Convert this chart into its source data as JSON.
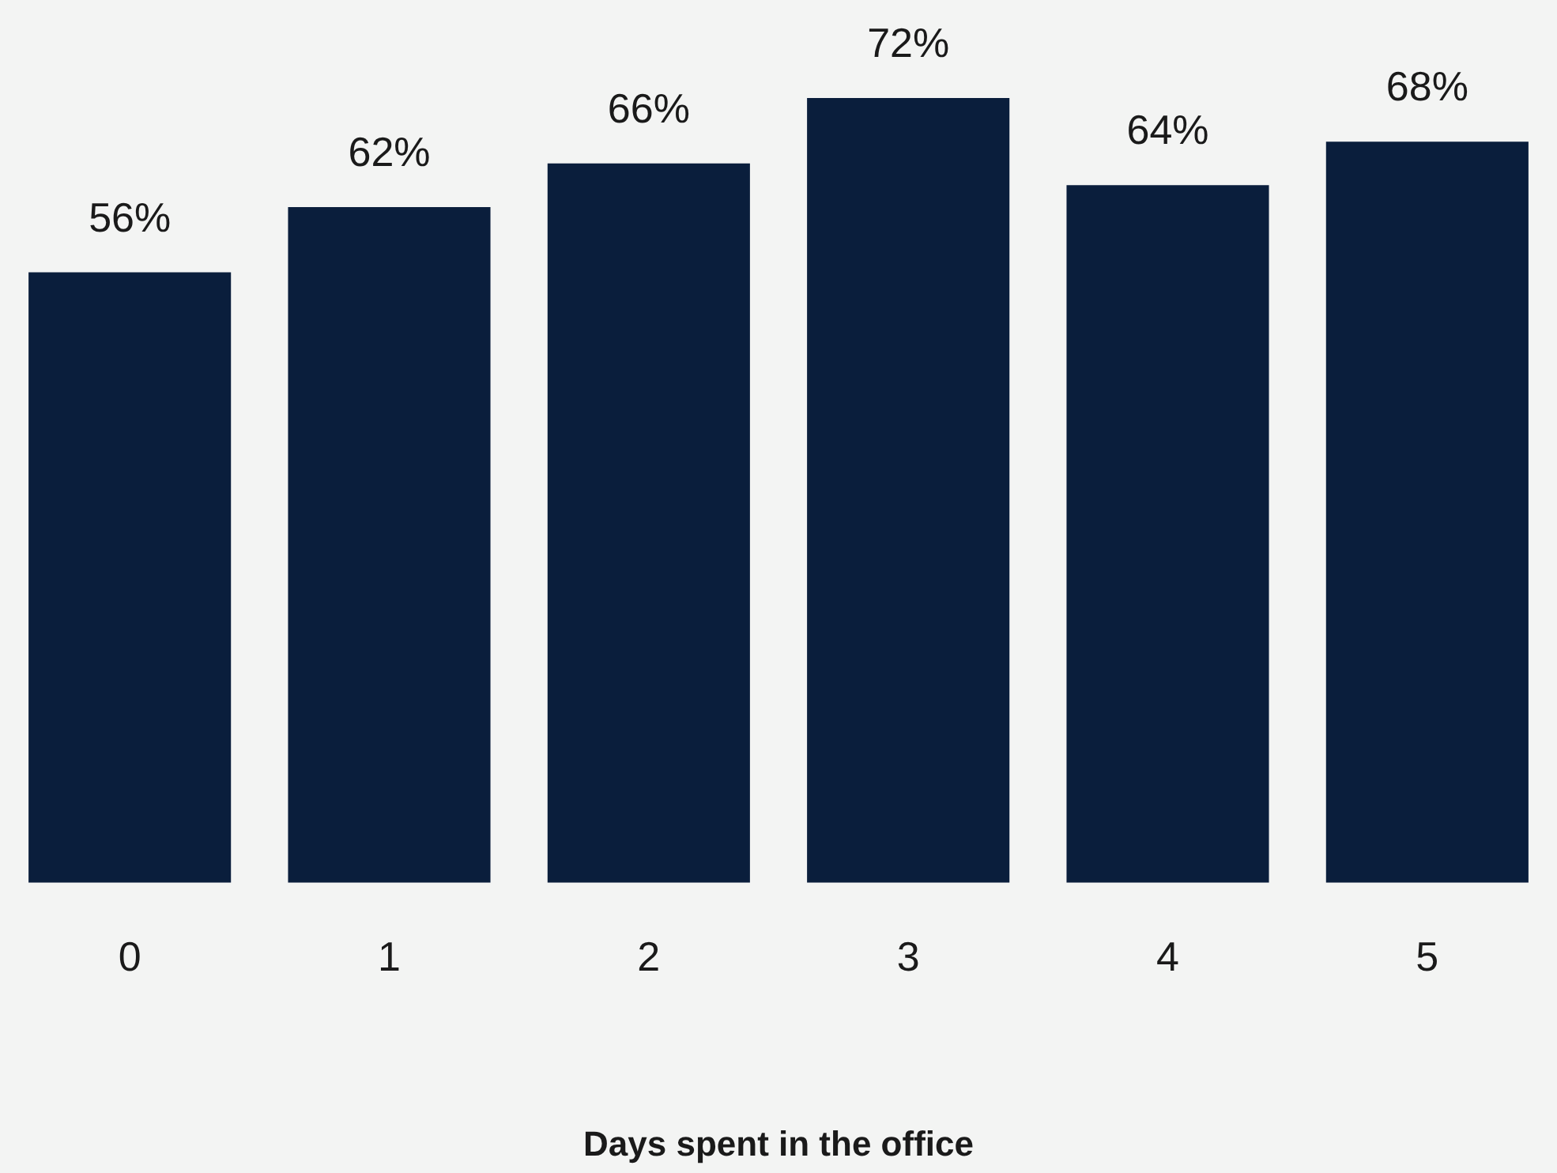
{
  "chart_data": {
    "type": "bar",
    "xlabel": "Days spent in the office",
    "categories": [
      "0",
      "1",
      "2",
      "3",
      "4",
      "5"
    ],
    "values": [
      56,
      62,
      66,
      72,
      64,
      68
    ],
    "value_labels": [
      "56%",
      "62%",
      "66%",
      "72%",
      "64%",
      "68%"
    ],
    "color": "#0a1e3c"
  }
}
